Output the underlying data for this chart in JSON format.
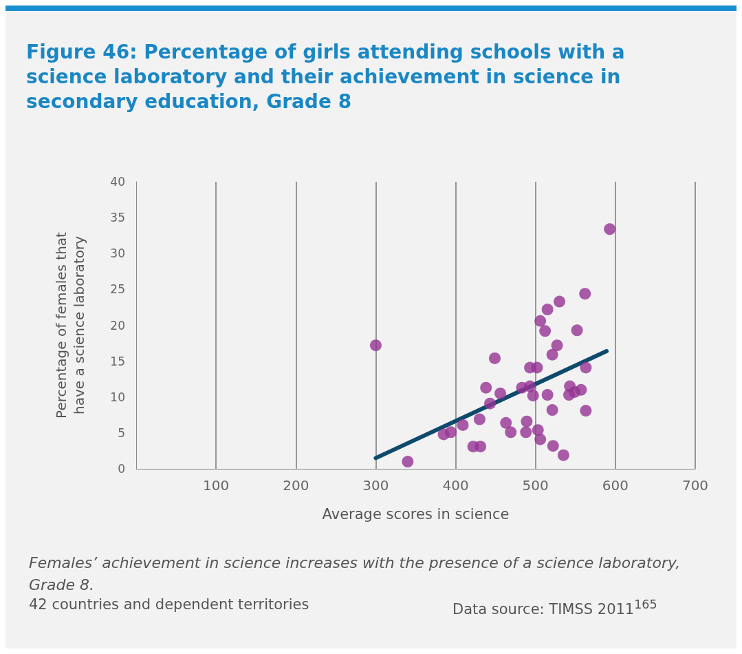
{
  "chart_data": {
    "type": "scatter",
    "title": "Figure 46: Percentage of girls attending schools with a science laboratory and their achievement in science in secondary education, Grade 8",
    "xlabel": "Average scores in science",
    "ylabel": "Percentage of females that\nhave a science laboratory",
    "annotations": [
      "Females’ achievement in science increases with the presence of a science laboratory, Grade 8.",
      "42 countries and dependent territories",
      "Data source: TIMSS 2011$^{165}$"
    ],
    "xlim": [
      0,
      700
    ],
    "xticks": [
      100,
      200,
      300,
      400,
      500,
      600,
      700
    ],
    "ylim": [
      0,
      40
    ],
    "yticks": [
      0,
      5,
      10,
      15,
      20,
      25,
      30,
      35,
      40
    ],
    "grid": "x",
    "marker": "circle",
    "series": [
      {
        "color": "#953393",
        "x": [
          300,
          340,
          593,
          562,
          530,
          515,
          506,
          512,
          552,
          527,
          521,
          449,
          493,
          502,
          563,
          438,
          456,
          483,
          493,
          497,
          515,
          543,
          542,
          557,
          549,
          443,
          521,
          563,
          409,
          430,
          463,
          469,
          489,
          488,
          503,
          506,
          385,
          394,
          422,
          431,
          522,
          535
        ],
        "values": [
          17.2,
          1.0,
          33.4,
          24.4,
          23.3,
          22.2,
          20.6,
          19.2,
          19.3,
          17.2,
          15.9,
          15.4,
          14.1,
          14.1,
          14.1,
          11.3,
          10.5,
          11.3,
          11.5,
          10.2,
          10.3,
          11.5,
          10.3,
          11.0,
          10.7,
          9.1,
          8.2,
          8.1,
          6.1,
          6.9,
          6.4,
          5.1,
          6.6,
          5.1,
          5.4,
          4.1,
          4.8,
          5.1,
          3.1,
          3.1,
          3.2,
          1.9
        ]
      },
      {
        "type": "line",
        "color": "#0d4a6b",
        "x": [
          300,
          589
        ],
        "values": [
          1.5,
          16.4
        ],
        "marker": "none",
        "line_style": "solid"
      }
    ]
  }
}
